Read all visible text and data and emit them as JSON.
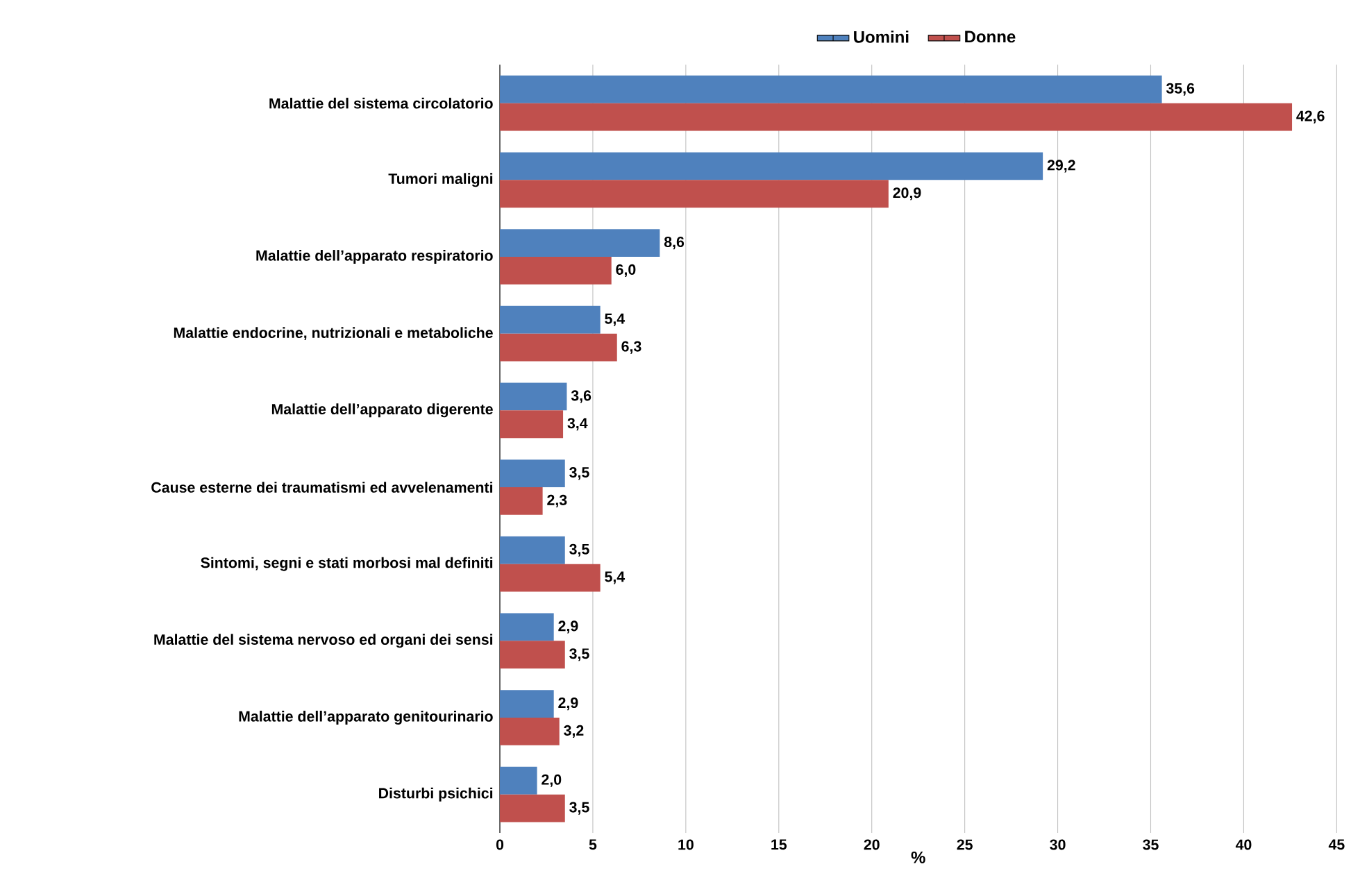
{
  "chart_data": {
    "type": "bar",
    "orientation": "horizontal",
    "xlabel": "%",
    "categories": [
      "Malattie del sistema circolatorio",
      "Tumori maligni",
      "Malattie dell’apparato respiratorio",
      "Malattie endocrine, nutrizionali e metaboliche",
      "Malattie dell’apparato digerente",
      "Cause esterne dei traumatismi ed avvelenamenti",
      "Sintomi, segni e stati morbosi mal definiti",
      "Malattie del sistema nervoso ed organi dei sensi",
      "Malattie dell’apparato genitourinario",
      "Disturbi psichici"
    ],
    "series": [
      {
        "name": "Uomini",
        "color": "#4f81bd",
        "values": [
          35.6,
          29.2,
          8.6,
          5.4,
          3.6,
          3.5,
          3.5,
          2.9,
          2.9,
          2.0
        ],
        "value_labels": [
          "35,6",
          "29,2",
          "8,6",
          "5,4",
          "3,6",
          "3,5",
          "3,5",
          "2,9",
          "2,9",
          "2,0"
        ]
      },
      {
        "name": "Donne",
        "color": "#c0504d",
        "values": [
          42.6,
          20.9,
          6.0,
          6.3,
          3.4,
          2.3,
          5.4,
          3.5,
          3.2,
          3.5
        ],
        "value_labels": [
          "42,6",
          "20,9",
          "6,0",
          "6,3",
          "3,4",
          "2,3",
          "5,4",
          "3,5",
          "3,2",
          "3,5"
        ]
      }
    ],
    "xlim": [
      0,
      45
    ],
    "xticks": [
      0,
      5,
      10,
      15,
      20,
      25,
      30,
      35,
      40,
      45
    ],
    "grid": "x",
    "legend": "top"
  }
}
